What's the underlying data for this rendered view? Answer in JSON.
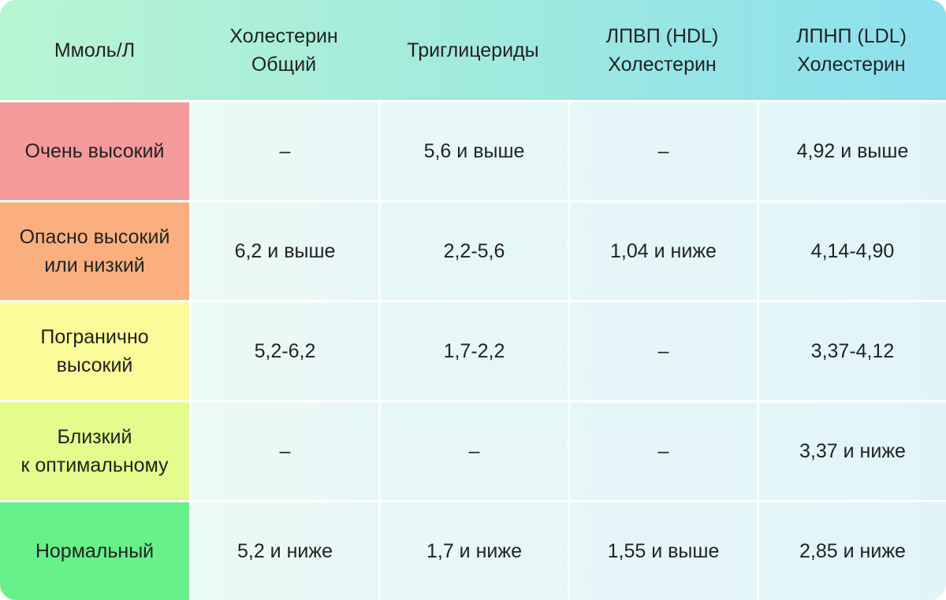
{
  "table": {
    "headers": [
      [
        "Ммоль/Л"
      ],
      [
        "Холестерин",
        "Общий"
      ],
      [
        "Триглицериды"
      ],
      [
        "ЛПВП (HDL)",
        "Холестерин"
      ],
      [
        "ЛПНП (LDL)",
        "Холестерин"
      ]
    ],
    "rows": [
      {
        "label": [
          "Очень высокий"
        ],
        "color": "#f49a9a",
        "cells": [
          "–",
          "5,6 и выше",
          "–",
          "4,92 и выше"
        ]
      },
      {
        "label": [
          "Опасно высокий",
          "или низкий"
        ],
        "color": "#f9b07e",
        "cells": [
          "6,2 и выше",
          "2,2-5,6",
          "1,04 и ниже",
          "4,14-4,90"
        ]
      },
      {
        "label": [
          "Погранично",
          "высокий"
        ],
        "color": "#fbfb9a",
        "cells": [
          "5,2-6,2",
          "1,7-2,2",
          "–",
          "3,37-4,12"
        ]
      },
      {
        "label": [
          "Близкий",
          "к оптимальному"
        ],
        "color": "#e3fc8c",
        "cells": [
          "–",
          "–",
          "–",
          "3,37 и ниже"
        ]
      },
      {
        "label": [
          "Нормальный"
        ],
        "color": "#68f08a",
        "cells": [
          "5,2 и ниже",
          "1,7 и ниже",
          "1,55 и выше",
          "2,85 и ниже"
        ]
      }
    ]
  },
  "colors": {
    "header_gradient_start": "#b8f5d2",
    "header_gradient_end": "#8ce0ee",
    "body_background": "#eaf8f5"
  }
}
